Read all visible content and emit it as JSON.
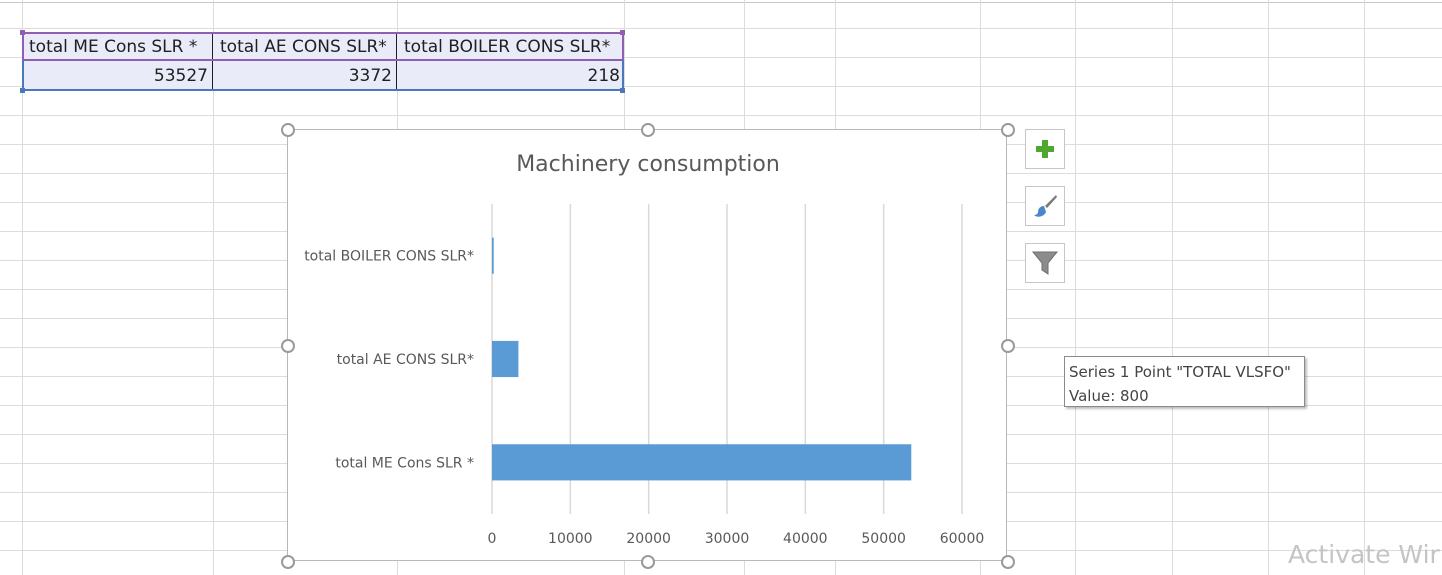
{
  "table": {
    "headers": [
      "total ME Cons SLR *",
      "total AE CONS SLR*",
      "total BOILER CONS SLR*"
    ],
    "values": [
      "53527",
      "3372",
      "218"
    ]
  },
  "side_buttons": [
    {
      "icon": "plus-icon"
    },
    {
      "icon": "brush-icon"
    },
    {
      "icon": "filter-icon"
    }
  ],
  "tooltip": {
    "line1": "Series 1 Point \"TOTAL VLSFO\"",
    "line2": "Value: 800"
  },
  "watermark": "Activate Wir",
  "colors": {
    "bar": "#5b9bd5",
    "gridline": "#d9d9d9",
    "title": "#595959",
    "axis_text": "#595959",
    "header_border": "#8e5fb3",
    "data_border": "#4a78bb",
    "plus_green": "#4ea72e"
  },
  "chart_data": {
    "type": "bar",
    "orientation": "horizontal",
    "title": "Machinery consumption",
    "categories": [
      "total BOILER CONS SLR*",
      "total AE CONS SLR*",
      "total ME Cons SLR *"
    ],
    "values": [
      218,
      3372,
      53527
    ],
    "xlim": [
      0,
      60000
    ],
    "x_ticks": [
      "0",
      "10000",
      "20000",
      "30000",
      "40000",
      "50000",
      "60000"
    ],
    "grid": "vertical",
    "legend": "none"
  }
}
